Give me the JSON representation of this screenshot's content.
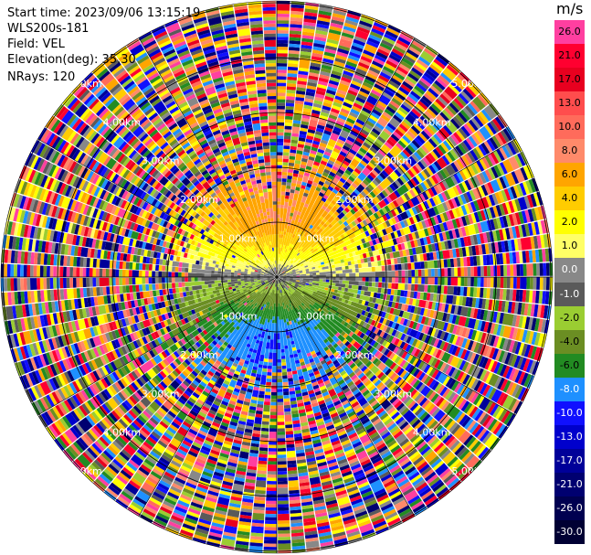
{
  "header": {
    "start_time": "Start time: 2023/09/06 13:15:19",
    "instrument": "WLS200s-181",
    "field": "Field: VEL",
    "elevation": "Elevation(deg): 35.30",
    "nrays": "NRays: 120"
  },
  "colorbar": {
    "unit": "m/s",
    "levels": [
      {
        "label": "26.0",
        "color": "#ff3fa0"
      },
      {
        "label": "21.0",
        "color": "#ff0030"
      },
      {
        "label": "17.0",
        "color": "#e8001f"
      },
      {
        "label": "13.0",
        "color": "#ff4d4d"
      },
      {
        "label": "10.0",
        "color": "#ff6b5b"
      },
      {
        "label": "8.0",
        "color": "#ff8a6a"
      },
      {
        "label": "6.0",
        "color": "#ffa500"
      },
      {
        "label": "4.0",
        "color": "#ffcc00"
      },
      {
        "label": "2.0",
        "color": "#ffff00"
      },
      {
        "label": "1.0",
        "color": "#ffff66"
      },
      {
        "label": "0.0",
        "color": "#888888"
      },
      {
        "label": "-1.0",
        "color": "#5a5a5a"
      },
      {
        "label": "-2.0",
        "color": "#9acd32"
      },
      {
        "label": "-4.0",
        "color": "#6b8e23"
      },
      {
        "label": "-6.0",
        "color": "#228b22"
      },
      {
        "label": "-8.0",
        "color": "#1e90ff"
      },
      {
        "label": "-10.0",
        "color": "#1010ff"
      },
      {
        "label": "-13.0",
        "color": "#0000cc"
      },
      {
        "label": "-17.0",
        "color": "#000099"
      },
      {
        "label": "-21.0",
        "color": "#000070"
      },
      {
        "label": "-26.0",
        "color": "#000050"
      },
      {
        "label": "-30.0",
        "color": "#000033"
      }
    ]
  },
  "chart_data": {
    "type": "heatmap",
    "title": "",
    "field": "VEL",
    "elevation_deg": 35.3,
    "nrays": 120,
    "range_rings_km": [
      1.0,
      2.0,
      3.0,
      4.0,
      5.0
    ],
    "ring_labels": [
      "1.00km",
      "2.00km",
      "3.00km",
      "4.00km",
      "5.00km"
    ],
    "unit": "m/s",
    "clean_range_km": 1.5,
    "pattern": "north half positive (yellow/orange), south half negative (green), beyond ~1.5 km noisy"
  }
}
